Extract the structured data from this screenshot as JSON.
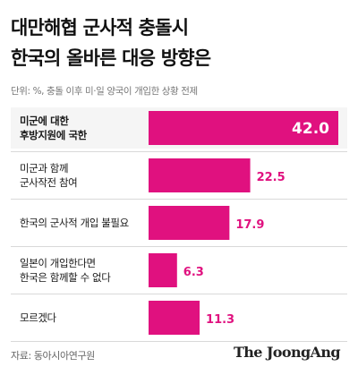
{
  "header": {
    "title_line1": "대만해협 군사적 충돌시",
    "title_line2": "한국의 올바른 대응 방향은",
    "unit_note": "단위: %, 충돌 이후 미·일 양국이 개입한 상황 전제"
  },
  "footer": {
    "source": "자료: 동아시아연구원",
    "brand": "The JoongAng"
  },
  "colors": {
    "bar": "#e0117f",
    "highlight_band": "#f5f5f5",
    "divider": "#d9d9d9",
    "value_on_bar": "#ffffff"
  },
  "chart_data": {
    "type": "bar",
    "orientation": "horizontal",
    "categories": [
      [
        "미군에 대한",
        "후방지원에 국한"
      ],
      [
        "미군과 함께",
        "군사작전 참여"
      ],
      [
        "한국의 군사적 개입 불필요"
      ],
      [
        "일본이 개입한다면",
        "한국은 함께할 수 없다"
      ],
      [
        "모르겠다"
      ]
    ],
    "values": [
      42.0,
      22.5,
      17.9,
      6.3,
      11.3
    ],
    "value_labels": [
      "42.0",
      "22.5",
      "17.9",
      "6.3",
      "11.3"
    ],
    "highlight_index": 0,
    "xlim": [
      0,
      42.0
    ],
    "grid": false,
    "legend": "none"
  }
}
